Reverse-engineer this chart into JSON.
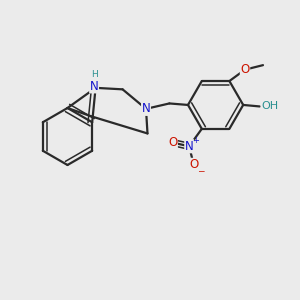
{
  "background_color": "#ebebeb",
  "bond_color": "#2a2a2a",
  "N_color": "#1414cc",
  "O_color": "#cc1400",
  "H_color": "#2a9090",
  "figsize": [
    3.0,
    3.0
  ],
  "dpi": 100,
  "xlim": [
    0,
    10
  ],
  "ylim": [
    0,
    10
  ]
}
